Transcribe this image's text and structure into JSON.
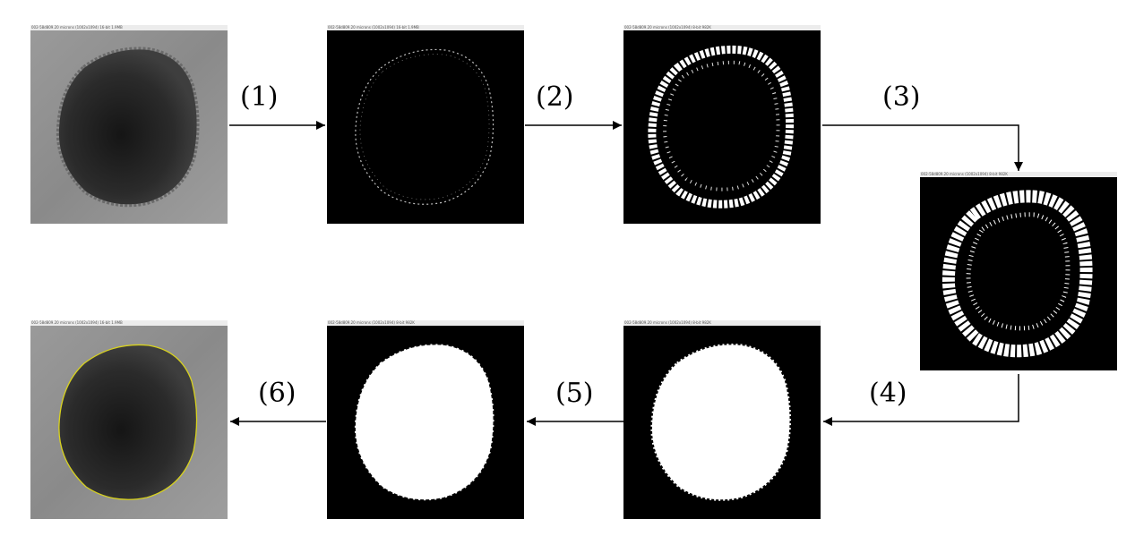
{
  "panels": [
    {
      "id": "p1",
      "caption": "002-58d809.20 microns (1002x1094) 16-bit 1.9MB"
    },
    {
      "id": "p2",
      "caption": "002-58d809.20 microns (1002x1094) 16-bit 1.9MB"
    },
    {
      "id": "p3",
      "caption": "002-58d809.20 microns (1002x1094) 8-bit 982K"
    },
    {
      "id": "p4",
      "caption": "002-58d809.20 microns (1002x1094) 8-bit 982K"
    },
    {
      "id": "p5",
      "caption": "002-58d809.20 microns (1002x1094) 8-bit 982K"
    },
    {
      "id": "p6",
      "caption": "002-58d809.20 microns (1002x1094) 8-bit 982K"
    },
    {
      "id": "p7",
      "caption": "002-58d809.20 microns (1002x1094) 16-bit 1.9MB"
    }
  ],
  "steps": [
    "(1)",
    "(2)",
    "(3)",
    "(4)",
    "(5)",
    "(6)"
  ],
  "colors": {
    "contour": "#d8d21e",
    "mask": "#ffffff",
    "background": "#000000"
  }
}
